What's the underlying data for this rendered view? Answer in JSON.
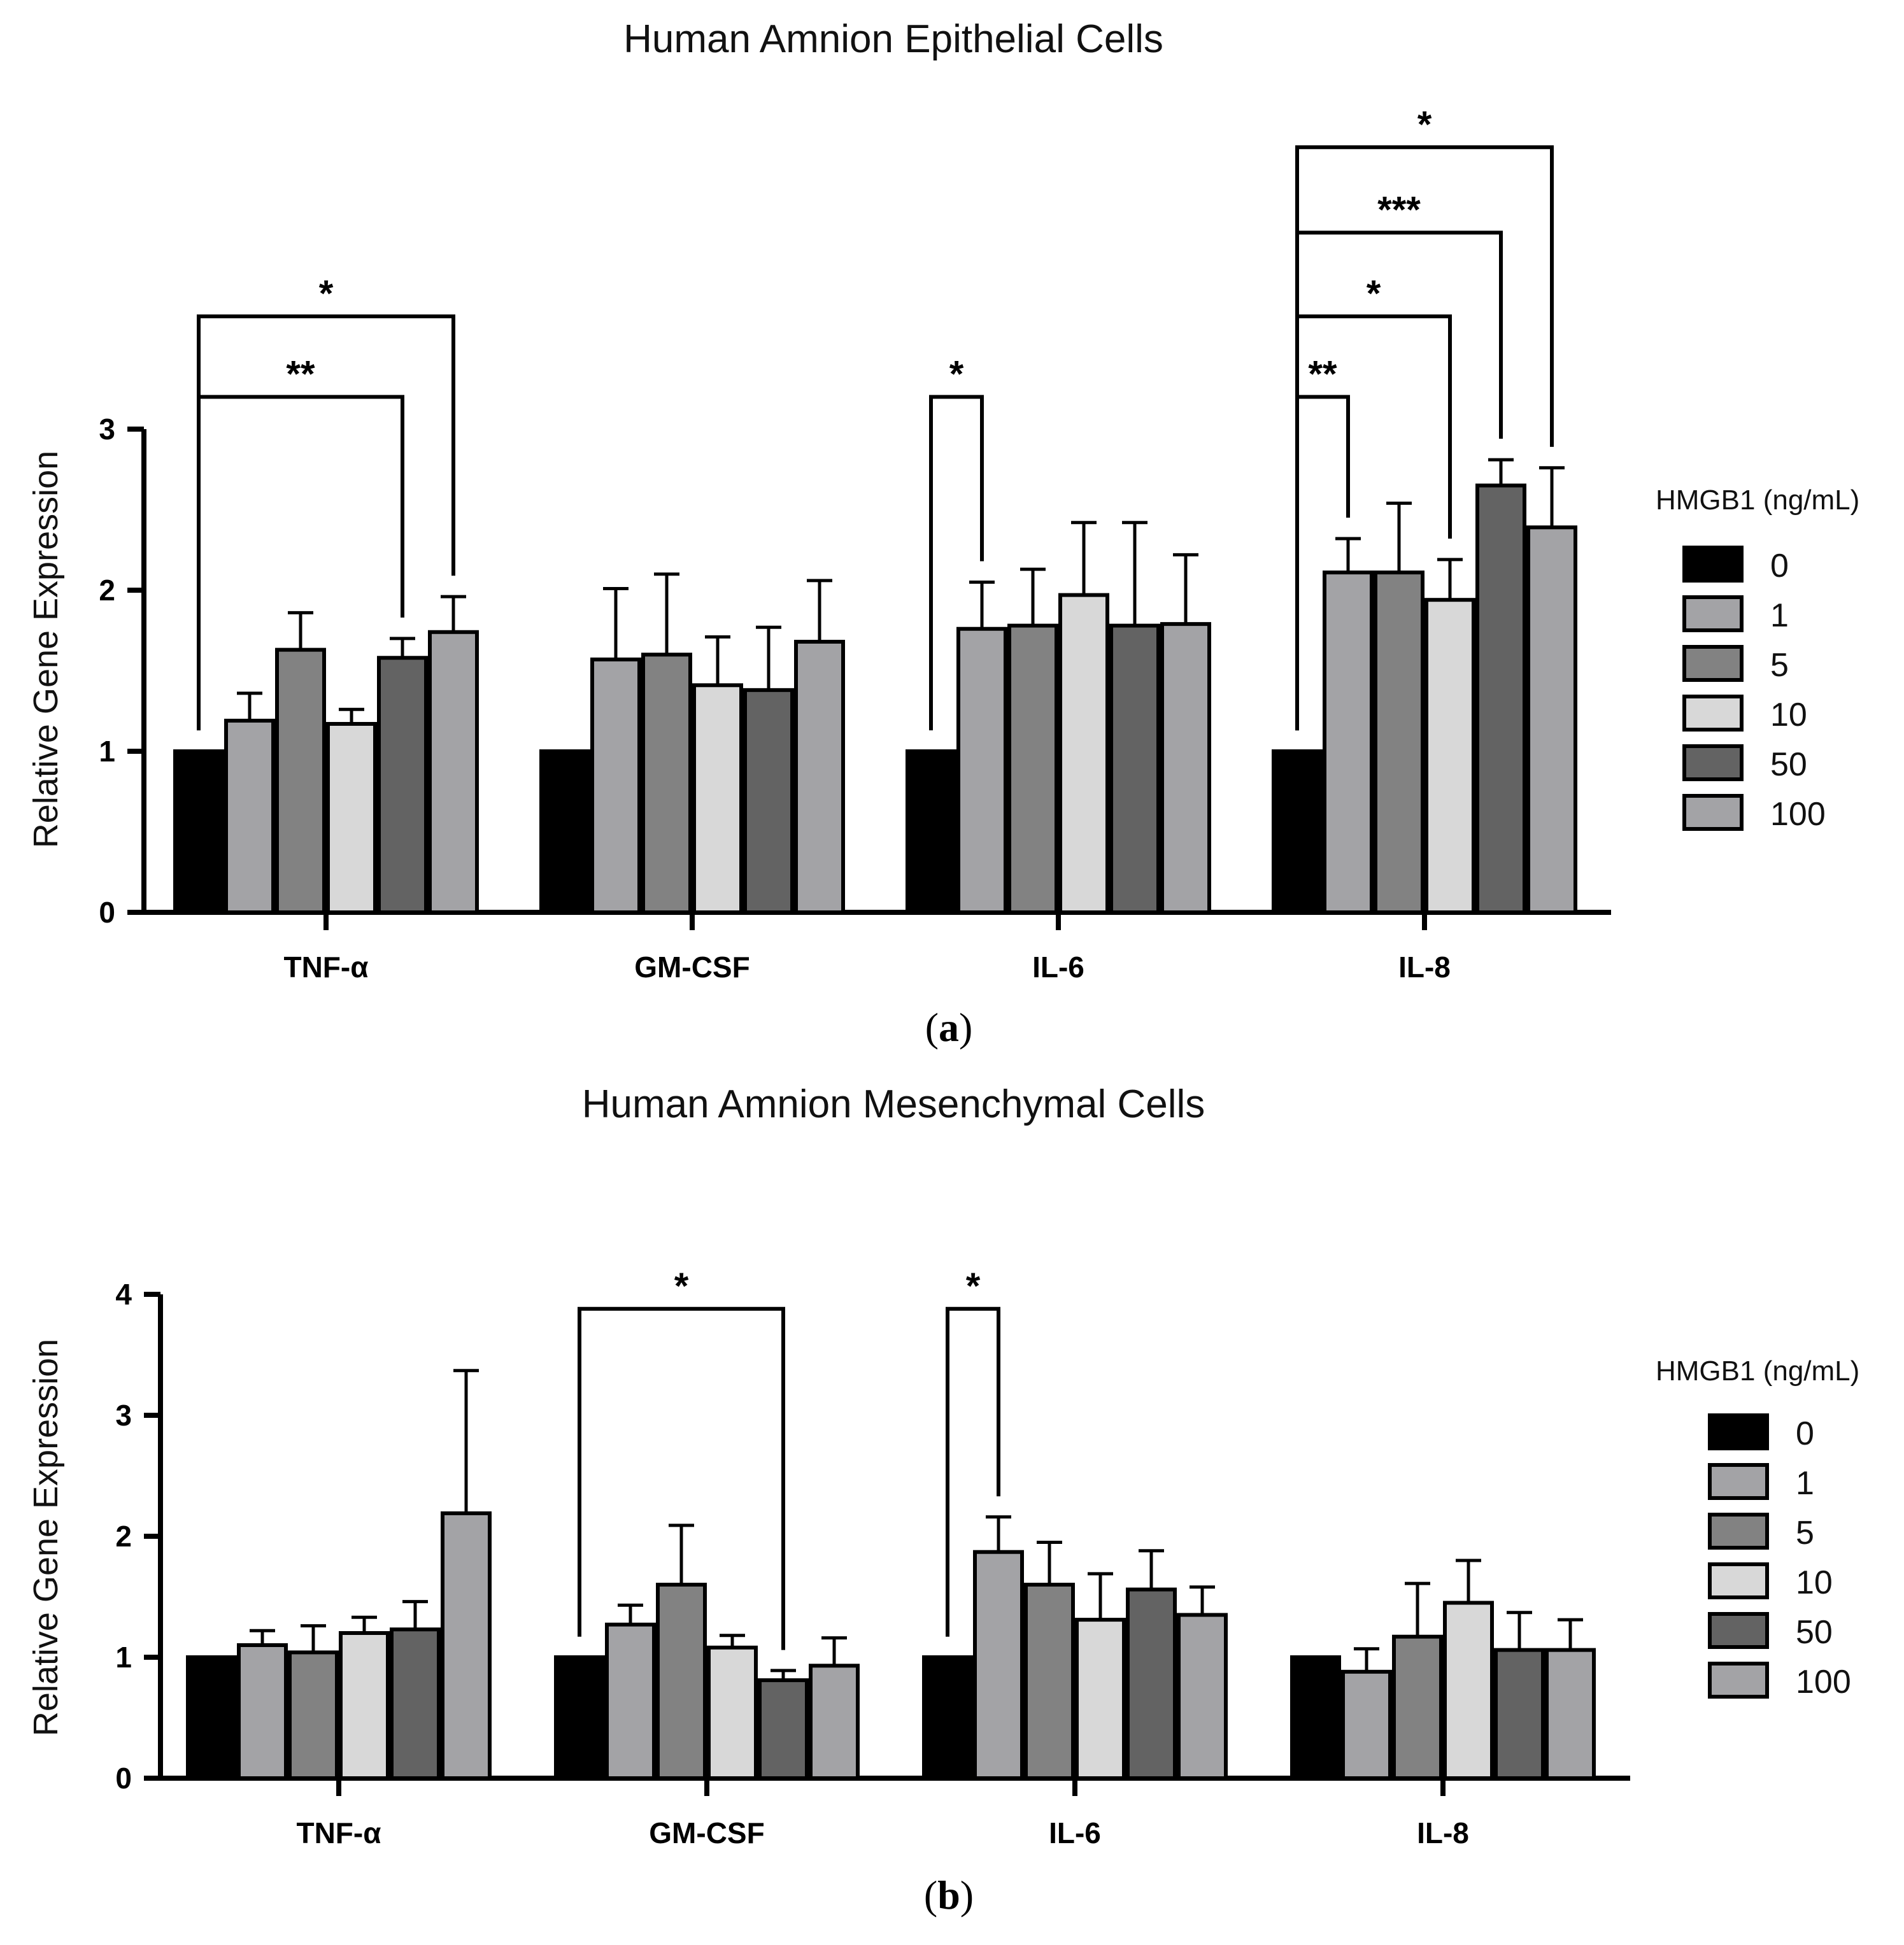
{
  "chart_data": [
    {
      "type": "bar",
      "panel_label": "a",
      "title": "Human Amnion Epithelial Cells",
      "xlabel": "",
      "ylabel": "Relative Gene Expression",
      "ylim": [
        0,
        3
      ],
      "yticks": [
        0,
        1,
        2,
        3
      ],
      "categories": [
        "TNF-α",
        "GM-CSF",
        "IL-6",
        "IL-8"
      ],
      "legend_title": "HMGB1 (ng/mL)",
      "legend_position": "right",
      "series": [
        {
          "name": "0",
          "color": "#000000",
          "values": [
            1.0,
            1.0,
            1.0,
            1.0
          ],
          "errors": [
            0,
            0,
            0,
            0
          ]
        },
        {
          "name": "1",
          "color": "#a3a3a6",
          "values": [
            1.19,
            1.57,
            1.76,
            2.11
          ],
          "errors": [
            0.17,
            0.44,
            0.29,
            0.21
          ]
        },
        {
          "name": "5",
          "color": "#828282",
          "values": [
            1.63,
            1.6,
            1.78,
            2.11
          ],
          "errors": [
            0.23,
            0.5,
            0.35,
            0.43
          ]
        },
        {
          "name": "10",
          "color": "#d8d8d8",
          "values": [
            1.17,
            1.41,
            1.97,
            1.94
          ],
          "errors": [
            0.09,
            0.3,
            0.45,
            0.25
          ]
        },
        {
          "name": "50",
          "color": "#636363",
          "values": [
            1.58,
            1.38,
            1.78,
            2.65
          ],
          "errors": [
            0.12,
            0.39,
            0.64,
            0.16
          ]
        },
        {
          "name": "100",
          "color": "#a3a3a6",
          "values": [
            1.74,
            1.68,
            1.79,
            2.39
          ],
          "errors": [
            0.22,
            0.38,
            0.43,
            0.37
          ]
        }
      ],
      "significance": [
        {
          "category": "TNF-α",
          "from": "0",
          "to": "50",
          "label": "**",
          "level": 3.2
        },
        {
          "category": "TNF-α",
          "from": "0",
          "to": "100",
          "label": "*",
          "level": 3.7
        },
        {
          "category": "IL-6",
          "from": "0",
          "to": "1",
          "label": "*",
          "level": 3.2
        },
        {
          "category": "IL-8",
          "from": "0",
          "to": "1",
          "label": "**",
          "level": 3.2
        },
        {
          "category": "IL-8",
          "from": "0",
          "to": "10",
          "label": "*",
          "level": 3.7
        },
        {
          "category": "IL-8",
          "from": "0",
          "to": "50",
          "label": "***",
          "level": 4.22
        },
        {
          "category": "IL-8",
          "from": "0",
          "to": "100",
          "label": "*",
          "level": 4.75
        }
      ]
    },
    {
      "type": "bar",
      "panel_label": "b",
      "title": "Human Amnion Mesenchymal Cells",
      "xlabel": "",
      "ylabel": "Relative Gene Expression",
      "ylim": [
        0,
        4
      ],
      "yticks": [
        0,
        1,
        2,
        3,
        4
      ],
      "categories": [
        "TNF-α",
        "GM-CSF",
        "IL-6",
        "IL-8"
      ],
      "legend_title": "HMGB1 (ng/mL)",
      "legend_position": "right",
      "series": [
        {
          "name": "0",
          "color": "#000000",
          "values": [
            1.0,
            1.0,
            1.0,
            1.0
          ],
          "errors": [
            0,
            0,
            0,
            0
          ]
        },
        {
          "name": "1",
          "color": "#a3a3a6",
          "values": [
            1.1,
            1.27,
            1.87,
            0.88
          ],
          "errors": [
            0.12,
            0.16,
            0.29,
            0.19
          ]
        },
        {
          "name": "5",
          "color": "#828282",
          "values": [
            1.04,
            1.6,
            1.6,
            1.17
          ],
          "errors": [
            0.22,
            0.49,
            0.35,
            0.44
          ]
        },
        {
          "name": "10",
          "color": "#d8d8d8",
          "values": [
            1.2,
            1.08,
            1.31,
            1.45
          ],
          "errors": [
            0.13,
            0.1,
            0.38,
            0.35
          ]
        },
        {
          "name": "50",
          "color": "#636363",
          "values": [
            1.23,
            0.81,
            1.56,
            1.06
          ],
          "errors": [
            0.23,
            0.08,
            0.32,
            0.31
          ]
        },
        {
          "name": "100",
          "color": "#a3a3a6",
          "values": [
            2.19,
            0.93,
            1.35,
            1.06
          ],
          "errors": [
            1.18,
            0.23,
            0.23,
            0.25
          ]
        }
      ],
      "significance": [
        {
          "category": "GM-CSF",
          "from": "0",
          "to": "50",
          "label": "*",
          "level": 3.88
        },
        {
          "category": "IL-6",
          "from": "0",
          "to": "1",
          "label": "*",
          "level": 3.88
        }
      ]
    }
  ]
}
